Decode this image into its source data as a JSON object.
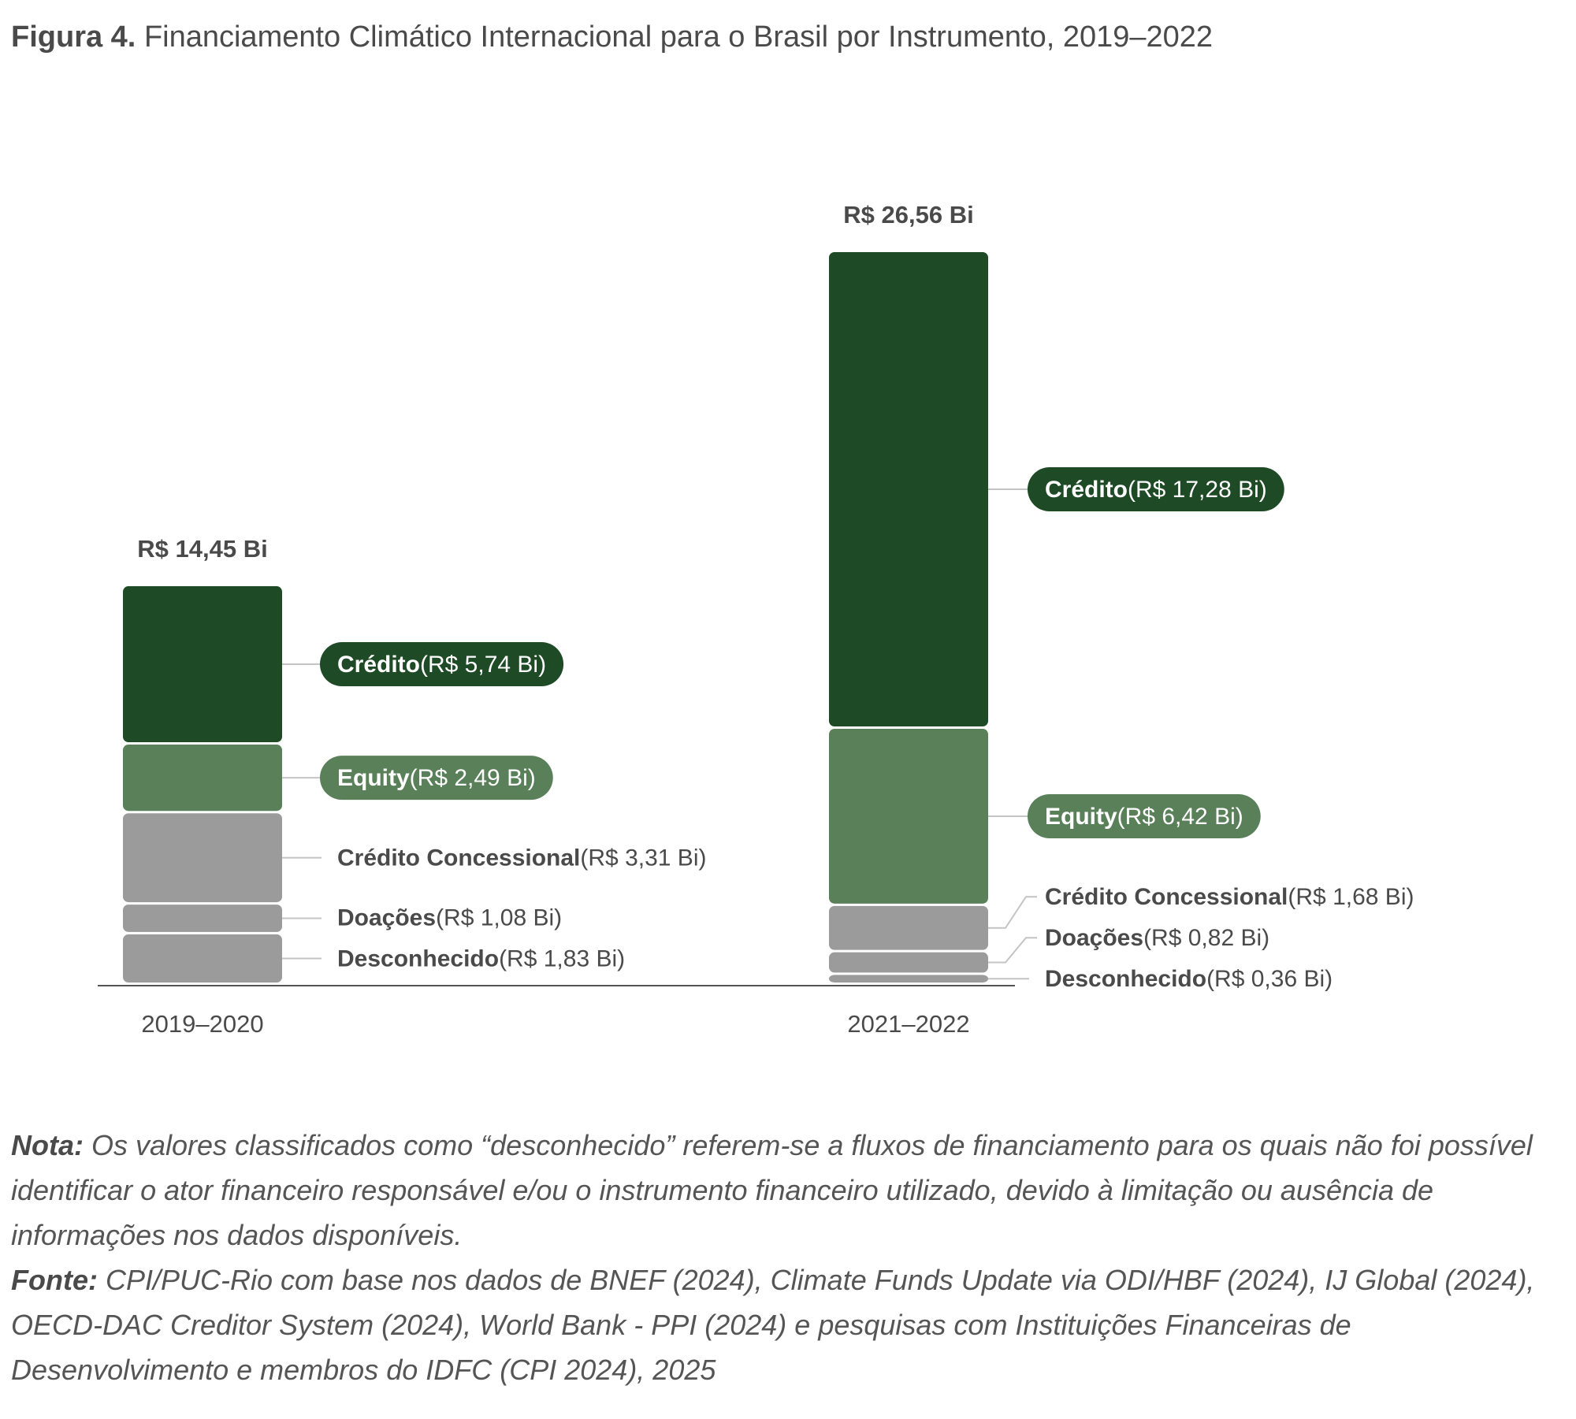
{
  "figure": {
    "title_lead": "Figura 4.",
    "title_text": "Financiamento Climático Internacional para o Brasil por Instrumento, 2019–2022"
  },
  "colors": {
    "credito": "#1e4a25",
    "equity": "#5a805a",
    "gray": "#9b9b9b",
    "text": "#4a4a4a",
    "axis": "#555555",
    "leader": "#c4c4c4"
  },
  "chart_data": {
    "type": "bar",
    "stacked": true,
    "categories": [
      "2019–2020",
      "2021–2022"
    ],
    "totals": [
      14.45,
      26.56
    ],
    "total_labels": [
      "R$ 14,45 Bi",
      "R$ 26,56 Bi"
    ],
    "series": [
      {
        "name": "Desconhecido",
        "values": [
          1.83,
          0.36
        ],
        "color": "#9b9b9b",
        "labels": [
          "Desconhecido (R$ 1,83 Bi)",
          "Desconhecido (R$ 0,36 Bi)"
        ],
        "label_name": "Desconhecido",
        "label_values": [
          "(R$ 1,83 Bi)",
          "(R$ 0,36 Bi)"
        ],
        "pill": false
      },
      {
        "name": "Doações",
        "values": [
          1.08,
          0.82
        ],
        "color": "#9b9b9b",
        "labels": [
          "Doações (R$ 1,08 Bi)",
          "Doações (R$ 0,82 Bi)"
        ],
        "label_name": "Doações",
        "label_values": [
          "(R$ 1,08 Bi)",
          "(R$ 0,82 Bi)"
        ],
        "pill": false
      },
      {
        "name": "Crédito Concessional",
        "values": [
          3.31,
          1.68
        ],
        "color": "#9b9b9b",
        "label_name": "Crédito Concessional",
        "label_values": [
          "(R$ 3,31 Bi)",
          "(R$ 1,68 Bi)"
        ],
        "pill": false
      },
      {
        "name": "Equity",
        "values": [
          2.49,
          6.42
        ],
        "color": "#5a805a",
        "label_name": "Equity",
        "label_values": [
          "(R$ 2,49 Bi)",
          "(R$ 6,42 Bi)"
        ],
        "pill": true
      },
      {
        "name": "Crédito",
        "values": [
          5.74,
          17.28
        ],
        "color": "#1e4a25",
        "label_name": "Crédito",
        "label_values": [
          "(R$ 5,74 Bi)",
          "(R$ 17,28 Bi)"
        ],
        "pill": true
      }
    ],
    "unit": "R$ Bi",
    "ylim": [
      0,
      26.56
    ],
    "grid": false,
    "legend": "none"
  },
  "notes": {
    "nota_label": "Nota:",
    "nota_text": " Os valores classificados como “desconhecido” referem-se a fluxos de financiamento para os quais não foi possível identificar o ator financeiro responsável e/ou o instrumento financeiro utilizado, devido à limitação ou ausência de informações nos dados disponíveis.",
    "fonte_label": "Fonte:",
    "fonte_text": " CPI/PUC-Rio com base nos dados de BNEF (2024), Climate Funds Update via ODI/HBF (2024), IJ Global (2024), OECD-DAC Creditor System (2024), World Bank - PPI (2024) e pesquisas com Instituições Financeiras de Desenvolvimento e membros do IDFC (CPI 2024), 2025"
  }
}
